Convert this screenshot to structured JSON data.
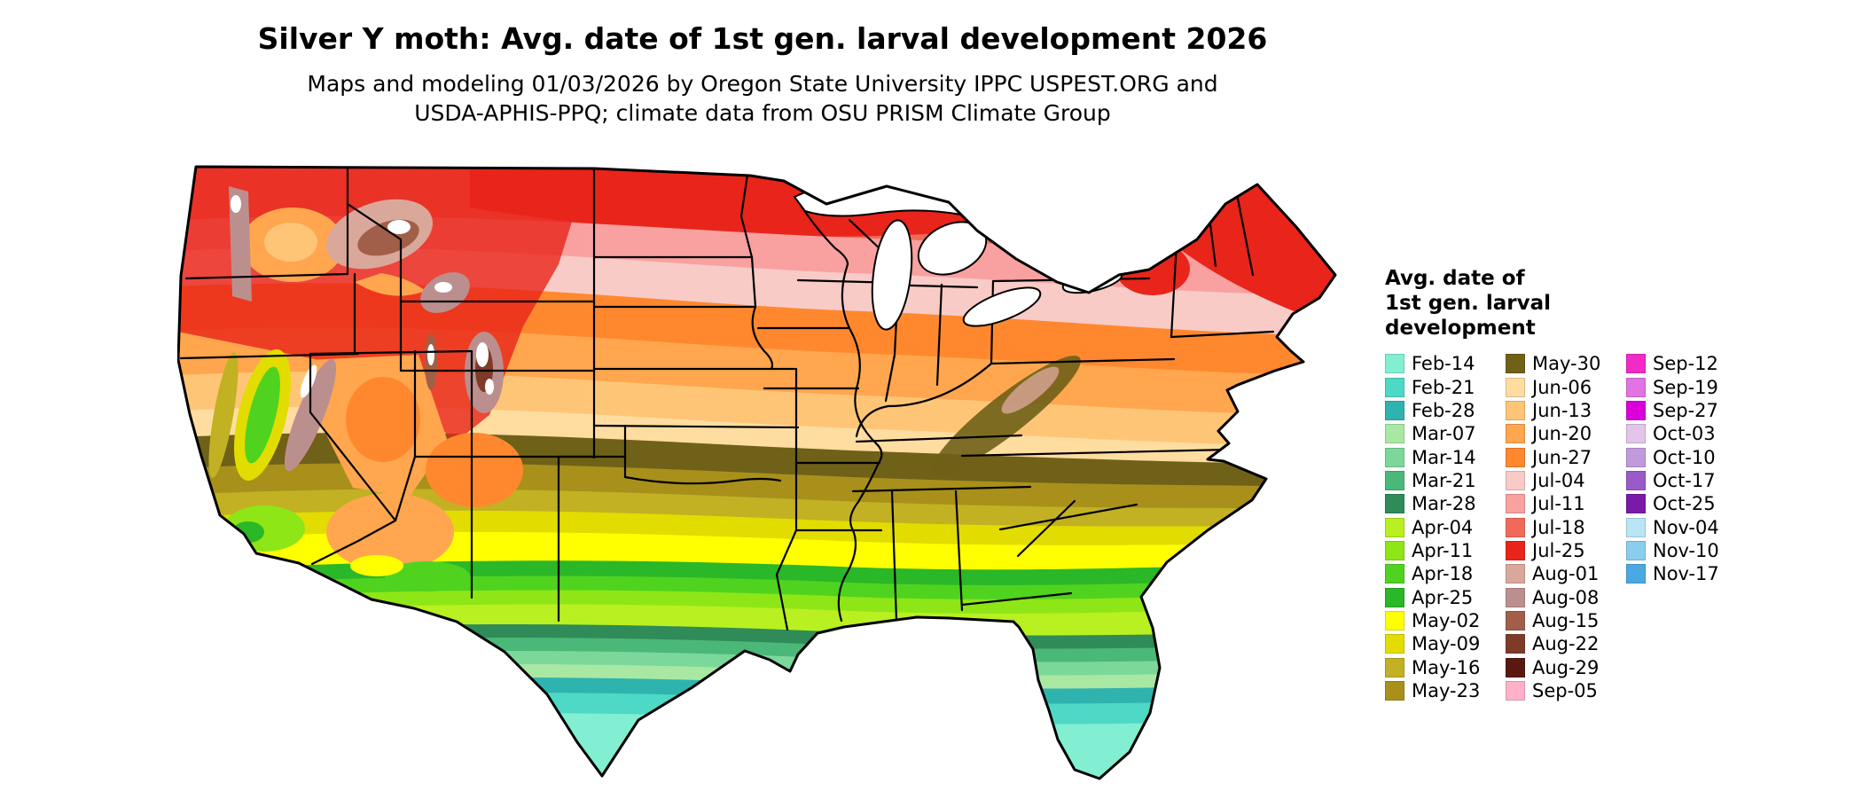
{
  "title": "Silver Y moth: Avg. date of 1st gen. larval development 2026",
  "subtitle_line1": "Maps and modeling 01/03/2026 by Oregon State University IPPC USPEST.ORG and",
  "subtitle_line2": "USDA-APHIS-PPQ; climate data from OSU PRISM Climate Group",
  "legend": {
    "title_lines": [
      "Avg. date of",
      "1st gen. larval",
      "development"
    ],
    "columns": [
      {
        "entries": [
          {
            "label": "Feb-14",
            "color": "#82EED2"
          },
          {
            "label": "Feb-21",
            "color": "#4ED8C6"
          },
          {
            "label": "Feb-28",
            "color": "#2FB3AE"
          },
          {
            "label": "Mar-07",
            "color": "#A9E8A2"
          },
          {
            "label": "Mar-14",
            "color": "#7BD89A"
          },
          {
            "label": "Mar-21",
            "color": "#4AB878"
          },
          {
            "label": "Mar-28",
            "color": "#2F8B57"
          },
          {
            "label": "Apr-04",
            "color": "#B9F021"
          },
          {
            "label": "Apr-11",
            "color": "#8FE616"
          },
          {
            "label": "Apr-18",
            "color": "#4FD31F"
          },
          {
            "label": "Apr-25",
            "color": "#2AB728"
          },
          {
            "label": "May-02",
            "color": "#FFFF00"
          },
          {
            "label": "May-09",
            "color": "#E2DC00"
          },
          {
            "label": "May-16",
            "color": "#C2B122"
          },
          {
            "label": "May-23",
            "color": "#A8901B"
          }
        ]
      },
      {
        "entries": [
          {
            "label": "May-30",
            "color": "#6F6118"
          },
          {
            "label": "Jun-06",
            "color": "#FFDDA1"
          },
          {
            "label": "Jun-13",
            "color": "#FFC577"
          },
          {
            "label": "Jun-20",
            "color": "#FFA64E"
          },
          {
            "label": "Jun-27",
            "color": "#FF882E"
          },
          {
            "label": "Jul-04",
            "color": "#F8CBC7"
          },
          {
            "label": "Jul-11",
            "color": "#F9A0A0"
          },
          {
            "label": "Jul-18",
            "color": "#F16A59"
          },
          {
            "label": "Jul-25",
            "color": "#E9241A"
          },
          {
            "label": "Aug-01",
            "color": "#D9A89A"
          },
          {
            "label": "Aug-08",
            "color": "#BC8F8F"
          },
          {
            "label": "Aug-15",
            "color": "#A15F49"
          },
          {
            "label": "Aug-22",
            "color": "#7E3B28"
          },
          {
            "label": "Aug-29",
            "color": "#591911"
          },
          {
            "label": "Sep-05",
            "color": "#FFB1C8"
          }
        ]
      },
      {
        "entries": [
          {
            "label": "Sep-12",
            "color": "#F12AC8"
          },
          {
            "label": "Sep-19",
            "color": "#E273E2"
          },
          {
            "label": "Sep-27",
            "color": "#DA00DA"
          },
          {
            "label": "Oct-03",
            "color": "#E2C5E9"
          },
          {
            "label": "Oct-10",
            "color": "#C19ADC"
          },
          {
            "label": "Oct-17",
            "color": "#9A5AC9"
          },
          {
            "label": "Oct-25",
            "color": "#7A1AA9"
          },
          {
            "label": "Nov-04",
            "color": "#B9E5F5"
          },
          {
            "label": "Nov-10",
            "color": "#8ACDED"
          },
          {
            "label": "Nov-17",
            "color": "#4AA9E1"
          }
        ]
      }
    ]
  }
}
